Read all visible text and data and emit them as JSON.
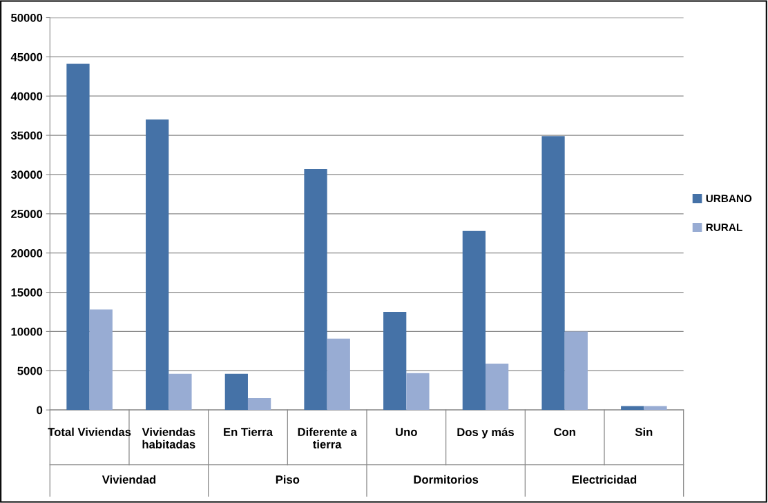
{
  "chart_data": {
    "type": "bar",
    "categories": [
      "Total Viviendas",
      "Viviendas\nhabitadas",
      "En Tierra",
      "Diferente a\ntierra",
      "Uno",
      "Dos y más",
      "Con",
      "Sin"
    ],
    "series": [
      {
        "name": "URBANO",
        "color": "#4572a7",
        "values": [
          44100,
          37000,
          4600,
          30700,
          12500,
          22800,
          34900,
          500
        ]
      },
      {
        "name": "RURAL",
        "color": "#98acd3",
        "values": [
          12800,
          4600,
          1500,
          9100,
          4700,
          5900,
          10000,
          500
        ]
      }
    ],
    "annotations": [
      "Viviendad",
      "Piso",
      "Dormitorios",
      "Electricidad"
    ],
    "ylim": [
      0,
      50000
    ],
    "yticks": [
      0,
      5000,
      10000,
      15000,
      20000,
      25000,
      30000,
      35000,
      40000,
      45000,
      50000
    ],
    "grid": "y",
    "legend": "right"
  }
}
